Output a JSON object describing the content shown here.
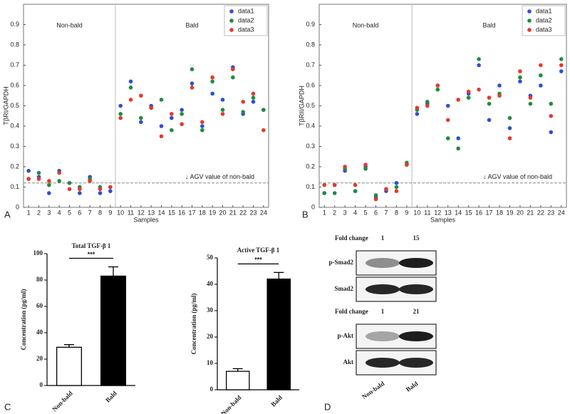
{
  "chart_data": [
    {
      "type": "scatter",
      "xlabel": "Samples",
      "ylabel": "TβRI/GAPDH",
      "x": [
        1,
        2,
        3,
        4,
        5,
        6,
        7,
        8,
        9,
        10,
        11,
        12,
        13,
        14,
        15,
        16,
        17,
        18,
        19,
        20,
        21,
        22,
        23,
        24
      ],
      "xlim": [
        0.5,
        24.5
      ],
      "xticks": [
        1,
        2,
        3,
        4,
        5,
        6,
        7,
        8,
        9,
        10,
        11,
        12,
        13,
        14,
        15,
        16,
        17,
        18,
        19,
        20,
        21,
        22,
        23,
        24
      ],
      "ylim": [
        0,
        1
      ],
      "yticks": [
        0,
        0.1,
        0.2,
        0.3,
        0.4,
        0.5,
        0.6,
        0.7,
        0.8,
        0.9
      ],
      "legend": "upper right",
      "regions": [
        {
          "label": "Non-bald",
          "xrange": [
            0.5,
            9.5
          ]
        },
        {
          "label": "Bald",
          "xrange": [
            9.5,
            24.5
          ]
        }
      ],
      "reference_line": {
        "value": 0.12,
        "label": "↓ AGV value of non-bald"
      },
      "series": [
        {
          "name": "data1",
          "color": "#2f4fcf",
          "values": [
            0.18,
            0.15,
            0.07,
            0.18,
            0.12,
            0.07,
            0.15,
            0.07,
            0.08,
            0.5,
            0.62,
            0.42,
            0.5,
            0.4,
            0.44,
            0.48,
            0.61,
            0.4,
            0.56,
            0.53,
            0.69,
            0.46,
            0.52,
            0.48
          ]
        },
        {
          "name": "data2",
          "color": "#1f8c3f",
          "values": [
            0.14,
            0.17,
            0.11,
            0.13,
            0.12,
            0.1,
            0.14,
            0.1,
            0.1,
            0.46,
            0.59,
            0.44,
            0.49,
            0.53,
            0.38,
            0.46,
            0.68,
            0.38,
            0.62,
            0.48,
            0.64,
            0.47,
            0.54,
            0.48
          ]
        },
        {
          "name": "data3",
          "color": "#e5392c",
          "values": [
            0.14,
            0.14,
            0.13,
            0.17,
            0.09,
            0.09,
            0.13,
            0.09,
            0.1,
            0.44,
            0.53,
            0.55,
            0.49,
            0.35,
            0.46,
            0.41,
            0.59,
            0.42,
            0.64,
            0.46,
            0.68,
            0.52,
            0.56,
            0.38
          ]
        }
      ]
    },
    {
      "type": "scatter",
      "xlabel": "Samples",
      "ylabel": "TβRII/GAPDH",
      "x": [
        1,
        2,
        3,
        4,
        5,
        6,
        7,
        8,
        9,
        10,
        11,
        12,
        13,
        14,
        15,
        16,
        17,
        18,
        19,
        20,
        21,
        22,
        23,
        24
      ],
      "xlim": [
        0.5,
        24.5
      ],
      "xticks": [
        1,
        2,
        3,
        4,
        5,
        6,
        7,
        8,
        9,
        10,
        11,
        12,
        13,
        14,
        15,
        16,
        17,
        18,
        19,
        20,
        21,
        22,
        23,
        24
      ],
      "ylim": [
        0,
        1
      ],
      "yticks": [
        0,
        0.1,
        0.2,
        0.3,
        0.4,
        0.5,
        0.6,
        0.7,
        0.8,
        0.9
      ],
      "legend": "upper right",
      "regions": [
        {
          "label": "Non-bald",
          "xrange": [
            0.5,
            9.5
          ]
        },
        {
          "label": "Bald",
          "xrange": [
            9.5,
            24.5
          ]
        }
      ],
      "reference_line": {
        "value": 0.12,
        "label": "↓ AGV value of non-bald"
      },
      "series": [
        {
          "name": "data1",
          "color": "#2f4fcf",
          "values": [
            0.07,
            0.11,
            0.18,
            0.08,
            0.2,
            0.05,
            0.08,
            0.12,
            0.21,
            0.46,
            0.51,
            0.6,
            0.5,
            0.34,
            0.56,
            0.7,
            0.43,
            0.6,
            0.39,
            0.62,
            0.55,
            0.6,
            0.37,
            0.67
          ]
        },
        {
          "name": "data2",
          "color": "#1f8c3f",
          "values": [
            0.07,
            0.07,
            0.19,
            0.08,
            0.19,
            0.06,
            0.09,
            0.1,
            0.22,
            0.48,
            0.52,
            0.58,
            0.34,
            0.29,
            0.54,
            0.73,
            0.51,
            0.56,
            0.44,
            0.64,
            0.51,
            0.65,
            0.51,
            0.73
          ]
        },
        {
          "name": "data3",
          "color": "#e5392c",
          "values": [
            0.11,
            0.11,
            0.2,
            0.11,
            0.21,
            0.04,
            0.09,
            0.08,
            0.21,
            0.49,
            0.5,
            0.6,
            0.43,
            0.53,
            0.57,
            0.58,
            0.54,
            0.55,
            0.34,
            0.67,
            0.54,
            0.7,
            0.45,
            0.7
          ]
        }
      ]
    },
    {
      "type": "bar",
      "title": "Total TGF-β 1",
      "ylabel": "Concentration (pg/ml)",
      "categories": [
        "Non-bald",
        "Bald"
      ],
      "values": [
        29,
        83
      ],
      "errors": [
        2,
        7
      ],
      "colors": [
        "#ffffff",
        "#000000"
      ],
      "significance": "***",
      "ylim": [
        0,
        100
      ],
      "yticks": [
        0,
        20,
        40,
        60,
        80,
        100
      ]
    },
    {
      "type": "bar",
      "title": "Active TGF-β 1",
      "ylabel": "Concentration (pg/ml)",
      "categories": [
        "Non-bald",
        "Bald"
      ],
      "values": [
        7,
        42
      ],
      "errors": [
        1,
        2.5
      ],
      "colors": [
        "#ffffff",
        "#000000"
      ],
      "significance": "***",
      "ylim": [
        0,
        50
      ],
      "yticks": [
        0,
        10,
        20,
        30,
        40,
        50
      ]
    }
  ],
  "blot": {
    "groups": [
      {
        "header": "Fold change",
        "fold": [
          1,
          15
        ],
        "rows": [
          "p-Smad2",
          "Smad2"
        ]
      },
      {
        "header": "Fold change",
        "fold": [
          1,
          21
        ],
        "rows": [
          "p-Akt",
          "Akt"
        ]
      }
    ],
    "lanes": [
      "Non-bald",
      "Bald"
    ]
  },
  "panel_labels": [
    "A",
    "B",
    "C",
    "D"
  ]
}
